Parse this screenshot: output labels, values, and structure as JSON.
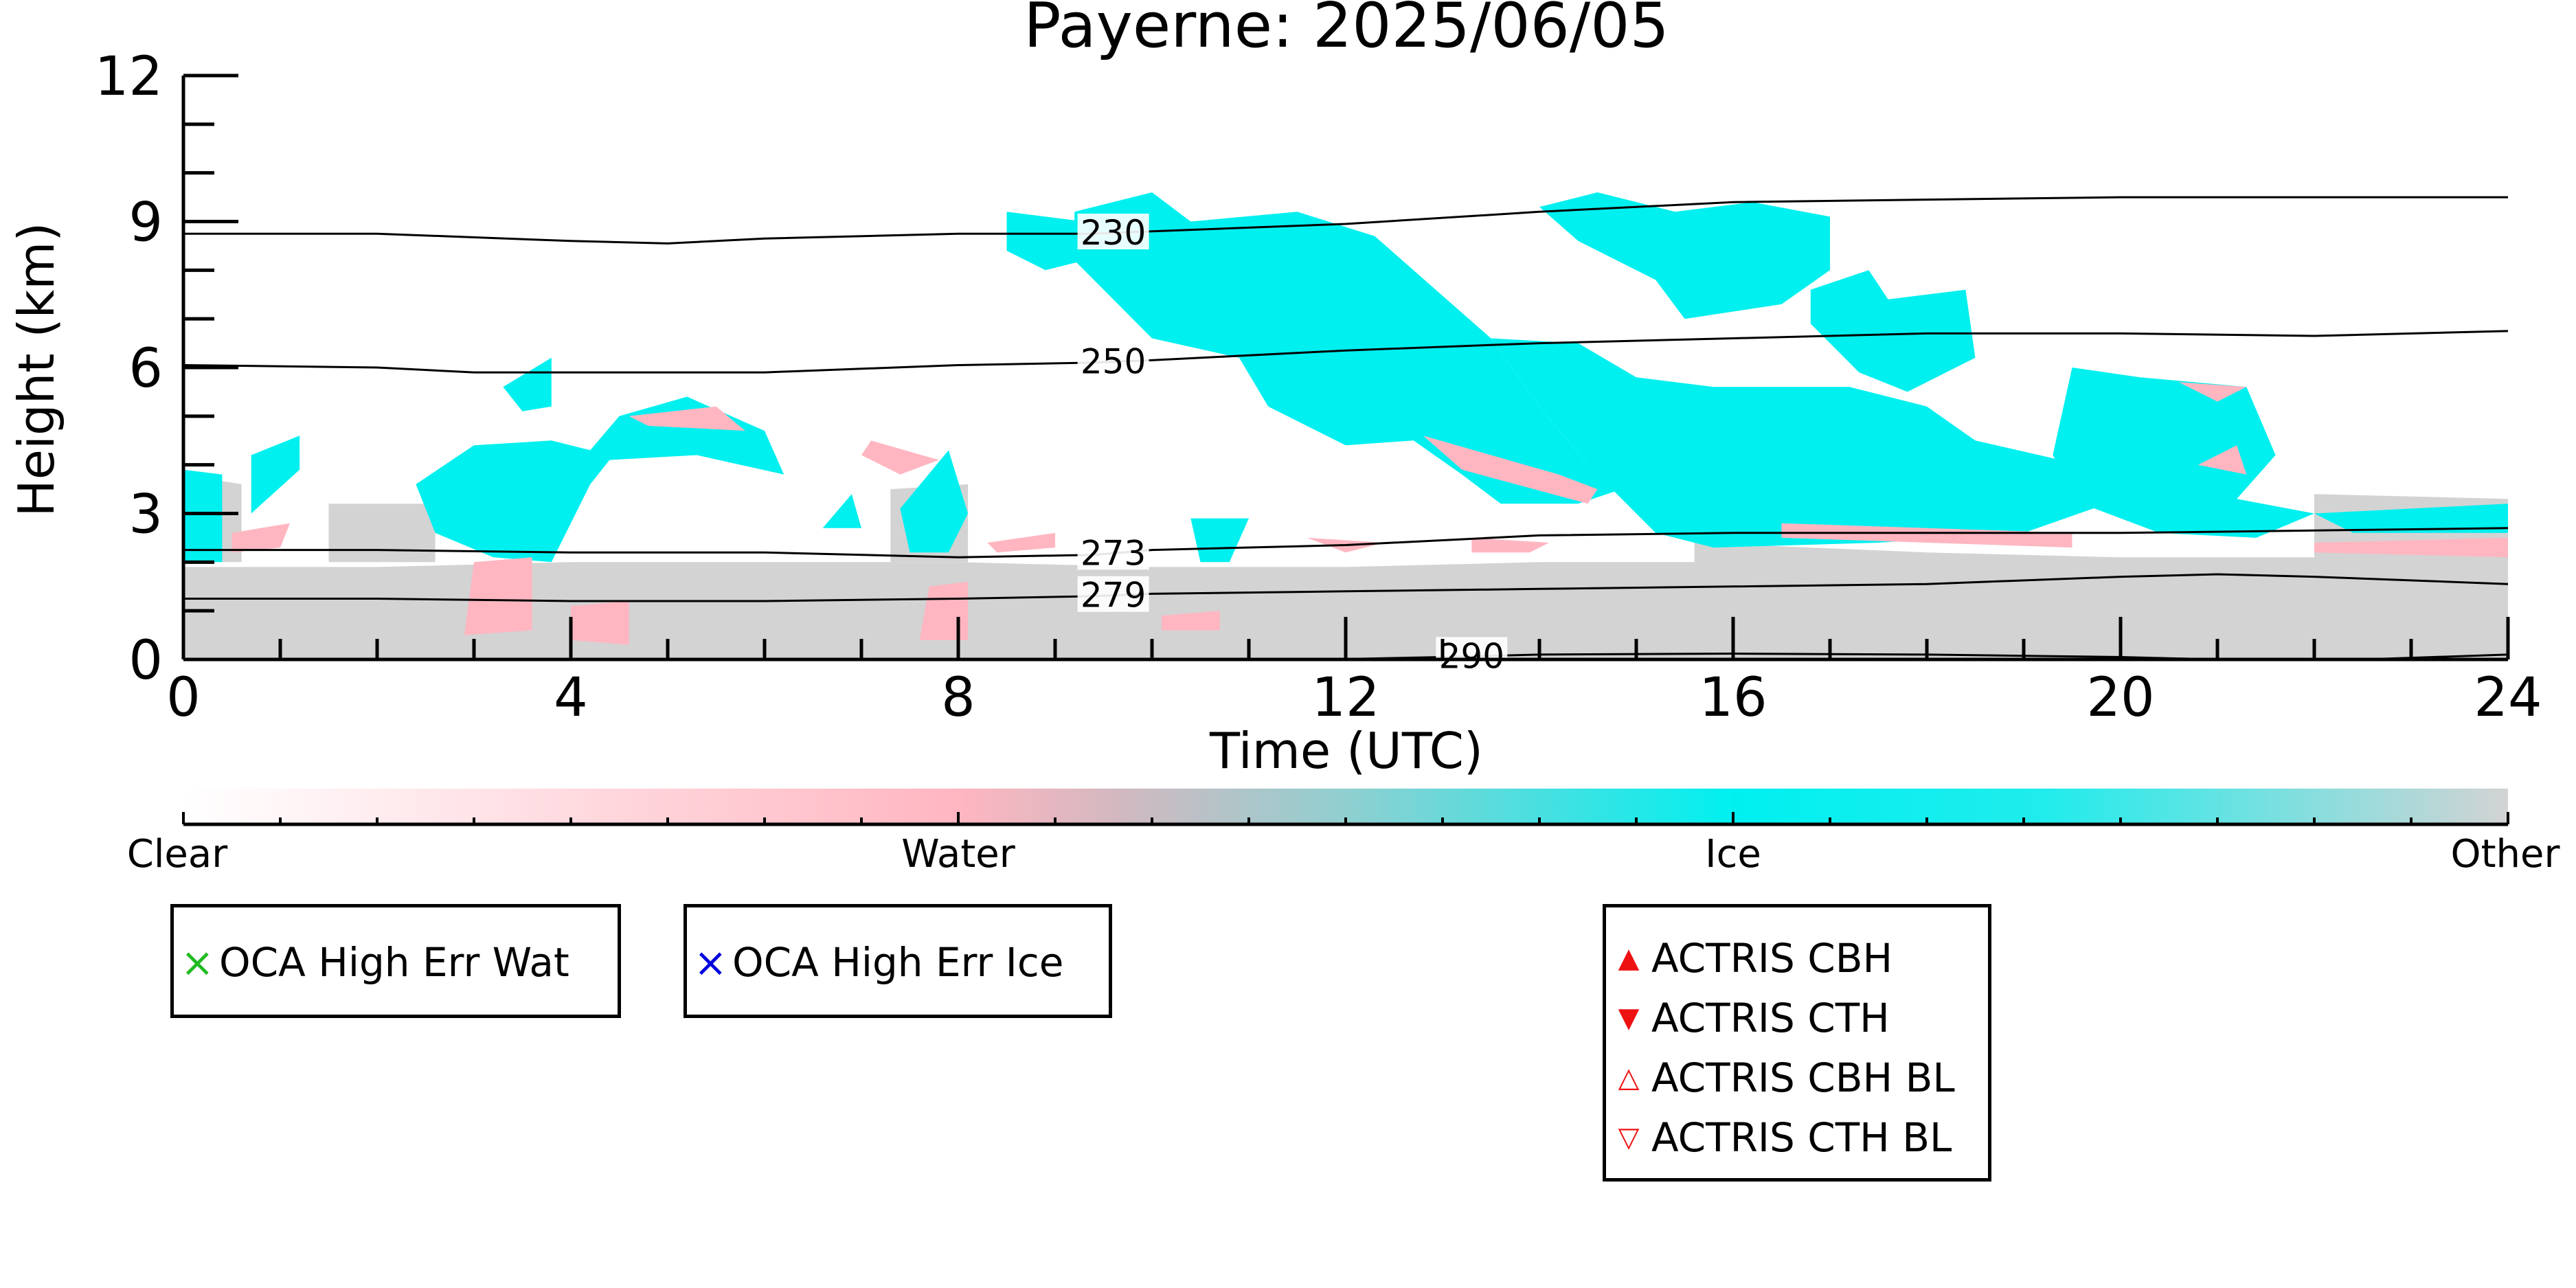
{
  "chart_data": {
    "type": "heatmap",
    "title": "Payerne: 2025/06/05",
    "xlabel": "Time (UTC)",
    "ylabel": "Height (km)",
    "xlim": [
      0,
      24
    ],
    "ylim": [
      0,
      12
    ],
    "xticks": [
      "0",
      "4",
      "8",
      "12",
      "16",
      "20",
      "24"
    ],
    "yticks": [
      "0",
      "3",
      "6",
      "9",
      "12"
    ],
    "colorbar": {
      "labels": [
        "Clear",
        "Water",
        "Ice",
        "Other"
      ],
      "colors": {
        "clear": "#ffffff",
        "water": "#ffb6c1",
        "ice": "#00f0f0",
        "other": "#d3d3d3"
      }
    },
    "contours": [
      {
        "label": "230",
        "label_x": 9.6,
        "points": [
          [
            0,
            8.75
          ],
          [
            2,
            8.75
          ],
          [
            4,
            8.6
          ],
          [
            5,
            8.55
          ],
          [
            6,
            8.65
          ],
          [
            8,
            8.75
          ],
          [
            9.4,
            8.75
          ],
          [
            10,
            8.8
          ],
          [
            12,
            8.95
          ],
          [
            14,
            9.2
          ],
          [
            16,
            9.4
          ],
          [
            18,
            9.45
          ],
          [
            20,
            9.5
          ],
          [
            22,
            9.5
          ],
          [
            24,
            9.5
          ]
        ]
      },
      {
        "label": "250",
        "label_x": 9.6,
        "points": [
          [
            0,
            6.05
          ],
          [
            2,
            6.0
          ],
          [
            3,
            5.9
          ],
          [
            4,
            5.9
          ],
          [
            6,
            5.9
          ],
          [
            8,
            6.05
          ],
          [
            9.4,
            6.1
          ],
          [
            10,
            6.15
          ],
          [
            12,
            6.35
          ],
          [
            14,
            6.5
          ],
          [
            16,
            6.6
          ],
          [
            18,
            6.7
          ],
          [
            20,
            6.7
          ],
          [
            22,
            6.65
          ],
          [
            24,
            6.75
          ]
        ]
      },
      {
        "label": "273",
        "label_x": 9.6,
        "points": [
          [
            0,
            2.25
          ],
          [
            2,
            2.25
          ],
          [
            4,
            2.2
          ],
          [
            6,
            2.2
          ],
          [
            8,
            2.1
          ],
          [
            9.4,
            2.15
          ],
          [
            10,
            2.25
          ],
          [
            12,
            2.35
          ],
          [
            14,
            2.55
          ],
          [
            16,
            2.6
          ],
          [
            18,
            2.6
          ],
          [
            20,
            2.6
          ],
          [
            22,
            2.65
          ],
          [
            24,
            2.7
          ]
        ]
      },
      {
        "label": "279",
        "label_x": 9.6,
        "points": [
          [
            0,
            1.25
          ],
          [
            2,
            1.25
          ],
          [
            4,
            1.2
          ],
          [
            6,
            1.2
          ],
          [
            8,
            1.25
          ],
          [
            9.4,
            1.3
          ],
          [
            10,
            1.35
          ],
          [
            12,
            1.4
          ],
          [
            14,
            1.45
          ],
          [
            16,
            1.5
          ],
          [
            18,
            1.55
          ],
          [
            20,
            1.7
          ],
          [
            21,
            1.75
          ],
          [
            22,
            1.7
          ],
          [
            24,
            1.55
          ]
        ]
      },
      {
        "label": "290",
        "label_x": 13.3,
        "points": [
          [
            11.8,
            0.0
          ],
          [
            13,
            0.05
          ],
          [
            14,
            0.1
          ],
          [
            16,
            0.12
          ],
          [
            18,
            0.1
          ],
          [
            20,
            0.05
          ],
          [
            21,
            0.0
          ],
          [
            22.5,
            0.0
          ],
          [
            24,
            0.1
          ]
        ]
      }
    ],
    "regions": [
      {
        "class": "other",
        "points": [
          [
            0,
            0
          ],
          [
            0,
            1.9
          ],
          [
            2,
            1.9
          ],
          [
            4,
            2.0
          ],
          [
            6,
            2.0
          ],
          [
            8,
            2.0
          ],
          [
            10,
            1.9
          ],
          [
            12,
            1.9
          ],
          [
            14,
            2.0
          ],
          [
            15.6,
            2.0
          ],
          [
            15.6,
            2.4
          ],
          [
            18,
            2.2
          ],
          [
            20,
            2.1
          ],
          [
            22,
            2.1
          ],
          [
            22,
            3.4
          ],
          [
            24,
            3.3
          ],
          [
            24,
            0
          ]
        ]
      },
      {
        "class": "other",
        "points": [
          [
            0,
            2.0
          ],
          [
            0.6,
            2.0
          ],
          [
            0.6,
            3.6
          ],
          [
            0,
            3.8
          ]
        ]
      },
      {
        "class": "other",
        "points": [
          [
            1.5,
            2.0
          ],
          [
            2.6,
            2.0
          ],
          [
            2.6,
            3.2
          ],
          [
            1.5,
            3.2
          ]
        ]
      },
      {
        "class": "other",
        "points": [
          [
            7.3,
            2.0
          ],
          [
            8.1,
            2.0
          ],
          [
            8.1,
            3.6
          ],
          [
            7.3,
            3.5
          ]
        ]
      },
      {
        "class": "ice",
        "points": [
          [
            0,
            2.0
          ],
          [
            0.4,
            2.0
          ],
          [
            0.4,
            3.8
          ],
          [
            0,
            3.9
          ]
        ]
      },
      {
        "class": "ice",
        "points": [
          [
            0.7,
            3.0
          ],
          [
            1.2,
            3.9
          ],
          [
            1.2,
            4.6
          ],
          [
            0.7,
            4.2
          ]
        ]
      },
      {
        "class": "ice",
        "points": [
          [
            2.4,
            3.6
          ],
          [
            3.0,
            4.4
          ],
          [
            3.8,
            4.5
          ],
          [
            4.2,
            4.3
          ],
          [
            4.5,
            5.0
          ],
          [
            5.2,
            5.4
          ],
          [
            6.0,
            4.7
          ],
          [
            6.2,
            3.8
          ],
          [
            5.3,
            4.2
          ],
          [
            4.4,
            4.1
          ],
          [
            4.2,
            3.6
          ],
          [
            3.8,
            2.0
          ],
          [
            3.2,
            2.1
          ],
          [
            2.6,
            2.6
          ]
        ]
      },
      {
        "class": "ice",
        "points": [
          [
            3.3,
            5.6
          ],
          [
            3.8,
            6.2
          ],
          [
            3.8,
            5.2
          ],
          [
            3.5,
            5.1
          ]
        ]
      },
      {
        "class": "ice",
        "points": [
          [
            6.6,
            2.7
          ],
          [
            6.9,
            3.4
          ],
          [
            7.0,
            2.7
          ]
        ]
      },
      {
        "class": "ice",
        "points": [
          [
            7.4,
            3.1
          ],
          [
            7.9,
            4.3
          ],
          [
            8.1,
            3.0
          ],
          [
            7.9,
            2.2
          ],
          [
            7.5,
            2.2
          ]
        ]
      },
      {
        "class": "ice",
        "points": [
          [
            10.4,
            2.9
          ],
          [
            11.0,
            2.9
          ],
          [
            10.8,
            2.0
          ],
          [
            10.5,
            2.0
          ]
        ]
      },
      {
        "class": "ice",
        "points": [
          [
            8.5,
            9.2
          ],
          [
            9.3,
            9.0
          ],
          [
            9.3,
            8.2
          ],
          [
            8.9,
            8.0
          ],
          [
            8.5,
            8.4
          ]
        ]
      },
      {
        "class": "ice",
        "points": [
          [
            9.2,
            9.2
          ],
          [
            10.0,
            9.6
          ],
          [
            10.4,
            9.0
          ],
          [
            11.5,
            9.2
          ],
          [
            12.3,
            8.7
          ],
          [
            13.5,
            6.6
          ],
          [
            14.0,
            5.2
          ],
          [
            14.5,
            4.0
          ],
          [
            15.0,
            3.6
          ],
          [
            14.4,
            3.2
          ],
          [
            13.6,
            3.2
          ],
          [
            13.2,
            3.8
          ],
          [
            12.7,
            4.5
          ],
          [
            12.0,
            4.4
          ],
          [
            11.2,
            5.2
          ],
          [
            10.9,
            6.2
          ],
          [
            10.0,
            6.6
          ],
          [
            9.6,
            7.4
          ],
          [
            9.2,
            8.2
          ]
        ]
      },
      {
        "class": "ice",
        "points": [
          [
            13.5,
            6.6
          ],
          [
            14.4,
            6.5
          ],
          [
            15.0,
            5.8
          ],
          [
            15.8,
            5.6
          ],
          [
            17.2,
            5.6
          ],
          [
            18.0,
            5.2
          ],
          [
            18.5,
            4.5
          ],
          [
            19.6,
            4.0
          ],
          [
            20.0,
            3.3
          ],
          [
            19.0,
            2.6
          ],
          [
            17.5,
            2.4
          ],
          [
            15.8,
            2.3
          ],
          [
            15.2,
            2.6
          ],
          [
            14.8,
            3.4
          ],
          [
            14.5,
            4.0
          ],
          [
            14.0,
            5.2
          ]
        ]
      },
      {
        "class": "ice",
        "points": [
          [
            14.0,
            9.3
          ],
          [
            14.6,
            9.6
          ],
          [
            15.4,
            9.2
          ],
          [
            16.2,
            9.4
          ],
          [
            17.0,
            9.1
          ],
          [
            17.0,
            8.0
          ],
          [
            16.5,
            7.3
          ],
          [
            15.5,
            7.0
          ],
          [
            15.2,
            7.8
          ],
          [
            14.4,
            8.6
          ]
        ]
      },
      {
        "class": "ice",
        "points": [
          [
            16.8,
            7.6
          ],
          [
            17.4,
            8.0
          ],
          [
            17.6,
            7.4
          ],
          [
            18.4,
            7.6
          ],
          [
            18.5,
            6.2
          ],
          [
            17.8,
            5.5
          ],
          [
            17.3,
            5.9
          ],
          [
            16.8,
            6.9
          ]
        ]
      },
      {
        "class": "ice",
        "points": [
          [
            19.5,
            6.0
          ],
          [
            20.2,
            5.8
          ],
          [
            21.3,
            5.6
          ],
          [
            21.6,
            4.2
          ],
          [
            21.2,
            3.3
          ],
          [
            22.0,
            3.0
          ],
          [
            21.4,
            2.5
          ],
          [
            20.4,
            2.6
          ],
          [
            19.6,
            3.2
          ],
          [
            19.3,
            4.2
          ]
        ]
      },
      {
        "class": "ice",
        "points": [
          [
            22.0,
            3.0
          ],
          [
            24.0,
            3.2
          ],
          [
            24.0,
            2.6
          ],
          [
            22.4,
            2.6
          ]
        ]
      },
      {
        "class": "water",
        "points": [
          [
            4.6,
            5.0
          ],
          [
            5.5,
            5.2
          ],
          [
            5.8,
            4.7
          ],
          [
            4.8,
            4.8
          ]
        ]
      },
      {
        "class": "water",
        "points": [
          [
            7.1,
            4.5
          ],
          [
            7.8,
            4.1
          ],
          [
            7.4,
            3.8
          ],
          [
            7.0,
            4.2
          ]
        ]
      },
      {
        "class": "water",
        "points": [
          [
            4.0,
            0.4
          ],
          [
            4.6,
            0.3
          ],
          [
            4.6,
            1.2
          ],
          [
            4.0,
            1.1
          ]
        ]
      },
      {
        "class": "water",
        "points": [
          [
            2.9,
            0.5
          ],
          [
            3.6,
            0.6
          ],
          [
            3.6,
            2.1
          ],
          [
            3.0,
            2.0
          ]
        ]
      },
      {
        "class": "water",
        "points": [
          [
            7.6,
            0.4
          ],
          [
            8.1,
            0.4
          ],
          [
            8.1,
            1.6
          ],
          [
            7.7,
            1.5
          ]
        ]
      },
      {
        "class": "water",
        "points": [
          [
            0.5,
            2.6
          ],
          [
            1.1,
            2.8
          ],
          [
            1.0,
            2.3
          ],
          [
            0.5,
            2.2
          ]
        ]
      },
      {
        "class": "water",
        "points": [
          [
            8.3,
            2.4
          ],
          [
            9.0,
            2.6
          ],
          [
            9.0,
            2.3
          ],
          [
            8.4,
            2.2
          ]
        ]
      },
      {
        "class": "water",
        "points": [
          [
            11.6,
            2.5
          ],
          [
            12.4,
            2.4
          ],
          [
            12.0,
            2.2
          ]
        ]
      },
      {
        "class": "water",
        "points": [
          [
            13.3,
            2.5
          ],
          [
            14.1,
            2.4
          ],
          [
            13.9,
            2.2
          ],
          [
            13.3,
            2.2
          ]
        ]
      },
      {
        "class": "water",
        "points": [
          [
            12.8,
            4.6
          ],
          [
            14.2,
            3.8
          ],
          [
            14.6,
            3.5
          ],
          [
            14.5,
            3.2
          ],
          [
            13.2,
            3.9
          ]
        ]
      },
      {
        "class": "water",
        "points": [
          [
            16.5,
            2.8
          ],
          [
            19.5,
            2.6
          ],
          [
            19.5,
            2.3
          ],
          [
            16.5,
            2.5
          ]
        ]
      },
      {
        "class": "water",
        "points": [
          [
            20.6,
            5.7
          ],
          [
            21.3,
            5.6
          ],
          [
            21.0,
            5.3
          ]
        ]
      },
      {
        "class": "water",
        "points": [
          [
            20.8,
            4.0
          ],
          [
            21.2,
            4.4
          ],
          [
            21.3,
            3.8
          ]
        ]
      },
      {
        "class": "water",
        "points": [
          [
            22.0,
            2.4
          ],
          [
            24.0,
            2.5
          ],
          [
            24.0,
            2.1
          ],
          [
            22.0,
            2.2
          ]
        ]
      },
      {
        "class": "water",
        "points": [
          [
            10.1,
            0.9
          ],
          [
            10.7,
            1.0
          ],
          [
            10.7,
            0.6
          ],
          [
            10.1,
            0.6
          ]
        ]
      }
    ]
  },
  "legends": {
    "oca_wat": {
      "marker": "×",
      "color": "#22bb22",
      "label": "OCA High Err Wat"
    },
    "oca_ice": {
      "marker": "×",
      "color": "#0000dd",
      "label": "OCA High Err Ice"
    },
    "actris": [
      {
        "marker": "▲",
        "color": "#ee1111",
        "label": "ACTRIS CBH"
      },
      {
        "marker": "▼",
        "color": "#ee1111",
        "label": "ACTRIS CTH"
      },
      {
        "marker": "△",
        "color": "#ee1111",
        "label": "ACTRIS CBH BL"
      },
      {
        "marker": "▽",
        "color": "#ee1111",
        "label": "ACTRIS CTH BL"
      }
    ]
  }
}
